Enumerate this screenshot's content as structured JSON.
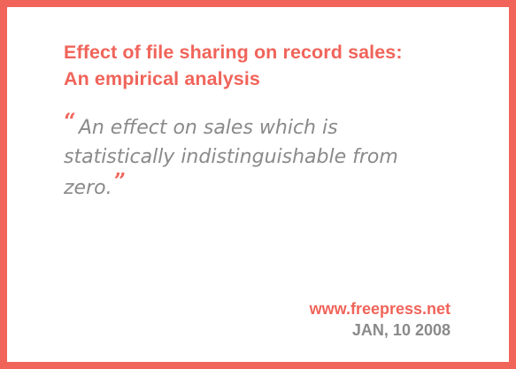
{
  "card": {
    "title_line1": "Effect of file sharing on record sales:",
    "title_line2": "An empirical analysis",
    "quote_open": "“",
    "quote_text": "An effect on sales which is statistically indistinguishable from zero.",
    "quote_close": "”",
    "source_site": "www.freepress.net",
    "source_date": "JAN, 10 2008"
  },
  "colors": {
    "accent": "#f0645a",
    "muted_text": "#8a8a8a",
    "background": "#ffffff"
  }
}
